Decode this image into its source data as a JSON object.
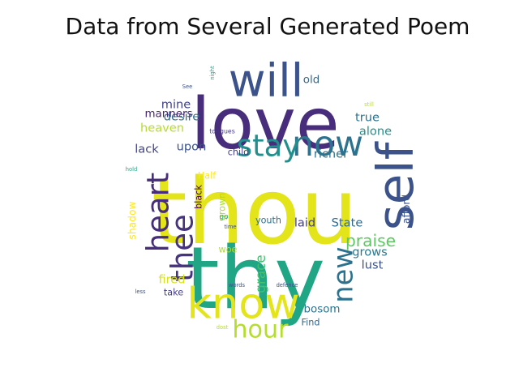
{
  "chart_data": {
    "type": "wordcloud",
    "title": "Data from Several Generated Poem",
    "mask": "circle",
    "background": "#ffffff",
    "words": [
      {
        "text": "thou",
        "size": 1.0,
        "color": "#e3e419",
        "rotate": false
      },
      {
        "text": "thy",
        "size": 0.95,
        "color": "#21a685",
        "rotate": false
      },
      {
        "text": "love",
        "size": 0.78,
        "color": "#472d7b",
        "rotate": false
      },
      {
        "text": "self",
        "size": 0.55,
        "color": "#3b528b",
        "rotate": true
      },
      {
        "text": "will",
        "size": 0.5,
        "color": "#3b528b",
        "rotate": false
      },
      {
        "text": "know",
        "size": 0.47,
        "color": "#e3e419",
        "rotate": false
      },
      {
        "text": "now",
        "size": 0.38,
        "color": "#2c728e",
        "rotate": false
      },
      {
        "text": "stay",
        "size": 0.33,
        "color": "#21908d",
        "rotate": false
      },
      {
        "text": "heart",
        "size": 0.33,
        "color": "#472d7b",
        "rotate": true
      },
      {
        "text": "thee",
        "size": 0.33,
        "color": "#46327e",
        "rotate": true
      },
      {
        "text": "new",
        "size": 0.3,
        "color": "#2c728e",
        "rotate": true
      },
      {
        "text": "hour",
        "size": 0.27,
        "color": "#b5de2b",
        "rotate": false
      },
      {
        "text": "praise",
        "size": 0.18,
        "color": "#5ec962",
        "rotate": false
      },
      {
        "text": "grace",
        "size": 0.15,
        "color": "#44bf70",
        "rotate": true
      },
      {
        "text": "mine",
        "size": 0.13,
        "color": "#414487",
        "rotate": false
      },
      {
        "text": "desire",
        "size": 0.13,
        "color": "#2c728e",
        "rotate": false
      },
      {
        "text": "heaven",
        "size": 0.13,
        "color": "#b5de2b",
        "rotate": false
      },
      {
        "text": "lack",
        "size": 0.13,
        "color": "#414487",
        "rotate": false
      },
      {
        "text": "upon",
        "size": 0.13,
        "color": "#3b528b",
        "rotate": false
      },
      {
        "text": "alone",
        "size": 0.13,
        "color": "#21908d",
        "rotate": false
      },
      {
        "text": "true",
        "size": 0.13,
        "color": "#2c728e",
        "rotate": false
      },
      {
        "text": "richer",
        "size": 0.13,
        "color": "#2c728e",
        "rotate": false
      },
      {
        "text": "State",
        "size": 0.13,
        "color": "#31688e",
        "rotate": false
      },
      {
        "text": "laid",
        "size": 0.13,
        "color": "#433e85",
        "rotate": false
      },
      {
        "text": "grows",
        "size": 0.13,
        "color": "#2a788e",
        "rotate": false
      },
      {
        "text": "lust",
        "size": 0.13,
        "color": "#3b528b",
        "rotate": false
      },
      {
        "text": "fired",
        "size": 0.13,
        "color": "#d8e219",
        "rotate": false
      },
      {
        "text": "bosom",
        "size": 0.12,
        "color": "#2c728e",
        "rotate": false
      },
      {
        "text": "manners",
        "size": 0.12,
        "color": "#482475",
        "rotate": false
      },
      {
        "text": "old",
        "size": 0.12,
        "color": "#31688e",
        "rotate": false
      },
      {
        "text": "shadow",
        "size": 0.11,
        "color": "#fde725",
        "rotate": true
      },
      {
        "text": "afford",
        "size": 0.11,
        "color": "#3b528b",
        "rotate": true
      },
      {
        "text": "grown",
        "size": 0.1,
        "color": "#aadc32",
        "rotate": true
      },
      {
        "text": "youth",
        "size": 0.1,
        "color": "#2c728e",
        "rotate": false
      },
      {
        "text": "Half",
        "size": 0.1,
        "color": "#fde725",
        "rotate": false
      },
      {
        "text": "child",
        "size": 0.1,
        "color": "#433e85",
        "rotate": false
      },
      {
        "text": "black",
        "size": 0.1,
        "color": "#440154",
        "rotate": true
      },
      {
        "text": "take",
        "size": 0.1,
        "color": "#433e85",
        "rotate": false
      },
      {
        "text": "woe",
        "size": 0.1,
        "color": "#addc30",
        "rotate": false
      },
      {
        "text": "Find",
        "size": 0.1,
        "color": "#31688e",
        "rotate": false
      },
      {
        "text": "go",
        "size": 0.08,
        "color": "#21a685",
        "rotate": false
      },
      {
        "text": "tongues",
        "size": 0.07,
        "color": "#443983",
        "rotate": false
      },
      {
        "text": "time",
        "size": 0.06,
        "color": "#3b528b",
        "rotate": false
      },
      {
        "text": "words",
        "size": 0.06,
        "color": "#3b528b",
        "rotate": false
      },
      {
        "text": "defence",
        "size": 0.06,
        "color": "#3b528b",
        "rotate": false
      },
      {
        "text": "night",
        "size": 0.06,
        "color": "#1fa187",
        "rotate": true
      },
      {
        "text": "See",
        "size": 0.06,
        "color": "#3b528b",
        "rotate": false
      },
      {
        "text": "still",
        "size": 0.06,
        "color": "#b5de2b",
        "rotate": false
      },
      {
        "text": "hold",
        "size": 0.06,
        "color": "#20a486",
        "rotate": false
      },
      {
        "text": "less",
        "size": 0.06,
        "color": "#3b528b",
        "rotate": false
      },
      {
        "text": "dost",
        "size": 0.06,
        "color": "#b5de2b",
        "rotate": false
      }
    ]
  }
}
